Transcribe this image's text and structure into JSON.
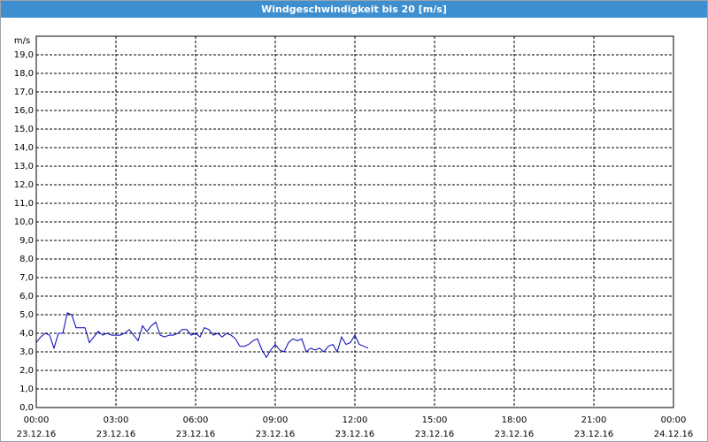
{
  "chart_data": {
    "type": "line",
    "title": "Windgeschwindigkeit bis 20 [m/s]",
    "y_unit": "m/s",
    "x": [
      0,
      10,
      20,
      30,
      40,
      50,
      60,
      70,
      80,
      90,
      100,
      110,
      120,
      130,
      140,
      150,
      160,
      170,
      180,
      190,
      200,
      210,
      220,
      230,
      240,
      250,
      260,
      270,
      280,
      290,
      300,
      310,
      320,
      330,
      340,
      350,
      360,
      370,
      380,
      390,
      400,
      410,
      420,
      430,
      440,
      450,
      460,
      470,
      480,
      490,
      500,
      510,
      520,
      530,
      540,
      550,
      560,
      570,
      580,
      590,
      600,
      610,
      620,
      630,
      640,
      650,
      660,
      670,
      680,
      690,
      700,
      710,
      720,
      730,
      740,
      750
    ],
    "series": [
      {
        "color": "#0000b4",
        "values": [
          3.5,
          3.8,
          4.0,
          3.9,
          3.2,
          4.0,
          4.0,
          5.1,
          5.0,
          4.3,
          4.3,
          4.3,
          3.5,
          3.8,
          4.1,
          3.9,
          4.0,
          3.9,
          3.9,
          3.9,
          4.0,
          4.2,
          3.9,
          3.6,
          4.4,
          4.1,
          4.4,
          4.6,
          3.9,
          3.8,
          3.9,
          3.9,
          4.0,
          4.2,
          4.2,
          3.9,
          4.0,
          3.8,
          4.3,
          4.2,
          3.9,
          4.0,
          3.8,
          4.0,
          3.9,
          3.7,
          3.3,
          3.3,
          3.4,
          3.6,
          3.7,
          3.1,
          2.7,
          3.1,
          3.4,
          3.1,
          3.0,
          3.5,
          3.7,
          3.6,
          3.7,
          3.0,
          3.2,
          3.1,
          3.2,
          3.0,
          3.3,
          3.4,
          3.0,
          3.8,
          3.4,
          3.5,
          3.9,
          3.4,
          3.3,
          3.2
        ]
      }
    ],
    "xlim": [
      0,
      1440
    ],
    "xticks": [
      {
        "value": 0,
        "label": "00:00"
      },
      {
        "value": 180,
        "label": "03:00"
      },
      {
        "value": 360,
        "label": "06:00"
      },
      {
        "value": 540,
        "label": "09:00"
      },
      {
        "value": 720,
        "label": "12:00"
      },
      {
        "value": 900,
        "label": "15:00"
      },
      {
        "value": 1080,
        "label": "18:00"
      },
      {
        "value": 1260,
        "label": "21:00"
      },
      {
        "value": 1440,
        "label": "00:00"
      }
    ],
    "xtick_dates": [
      "23.12.16",
      "23.12.16",
      "23.12.16",
      "23.12.16",
      "23.12.16",
      "23.12.16",
      "23.12.16",
      "23.12.16",
      "24.12.16"
    ],
    "ylim": [
      0,
      20
    ],
    "yticks": [
      {
        "value": 0,
        "label": "0,0"
      },
      {
        "value": 1,
        "label": "1,0"
      },
      {
        "value": 2,
        "label": "2,0"
      },
      {
        "value": 3,
        "label": "3,0"
      },
      {
        "value": 4,
        "label": "4,0"
      },
      {
        "value": 5,
        "label": "5,0"
      },
      {
        "value": 6,
        "label": "6,0"
      },
      {
        "value": 7,
        "label": "7,0"
      },
      {
        "value": 8,
        "label": "8,0"
      },
      {
        "value": 9,
        "label": "9,0"
      },
      {
        "value": 10,
        "label": "10,0"
      },
      {
        "value": 11,
        "label": "11,0"
      },
      {
        "value": 12,
        "label": "12,0"
      },
      {
        "value": 13,
        "label": "13,0"
      },
      {
        "value": 14,
        "label": "14,0"
      },
      {
        "value": 15,
        "label": "15,0"
      },
      {
        "value": 16,
        "label": "16,0"
      },
      {
        "value": 17,
        "label": "17,0"
      },
      {
        "value": 18,
        "label": "18,0"
      },
      {
        "value": 19,
        "label": "19,0"
      }
    ],
    "grid": true
  }
}
